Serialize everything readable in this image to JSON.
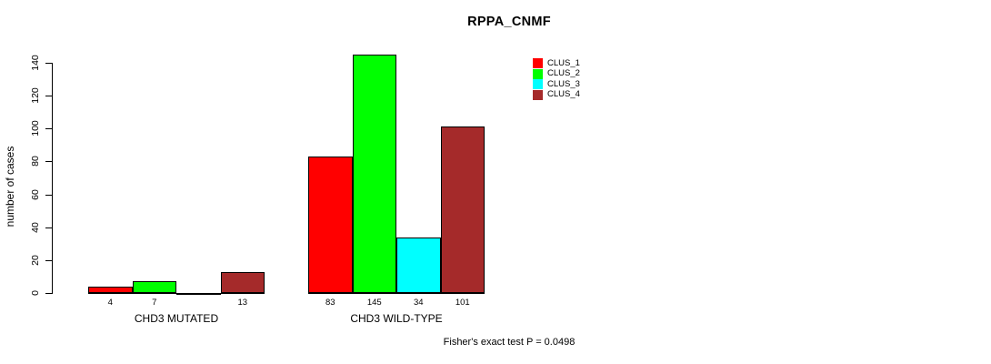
{
  "chart_data": {
    "type": "bar",
    "title": "RPPA_CNMF",
    "ylabel": "number of cases",
    "xlabel": "",
    "ylim": [
      0,
      140
    ],
    "yticks": [
      0,
      20,
      40,
      60,
      80,
      100,
      120,
      140
    ],
    "grid": false,
    "legend_position": "top-right",
    "categories": [
      "CHD3 MUTATED",
      "CHD3 WILD-TYPE"
    ],
    "series": [
      {
        "name": "CLUS_1",
        "color": "#FF0000",
        "values": [
          4,
          83
        ]
      },
      {
        "name": "CLUS_2",
        "color": "#00FF00",
        "values": [
          7,
          145
        ]
      },
      {
        "name": "CLUS_3",
        "color": "#00FFFF",
        "values": [
          0,
          34
        ]
      },
      {
        "name": "CLUS_4",
        "color": "#A52A2A",
        "values": [
          13,
          101
        ]
      }
    ],
    "bar_labels": [
      [
        "4",
        "7",
        "",
        "13"
      ],
      [
        "83",
        "145",
        "34",
        "101"
      ]
    ],
    "annotation": "Fisher's exact test P = 0.0498"
  }
}
